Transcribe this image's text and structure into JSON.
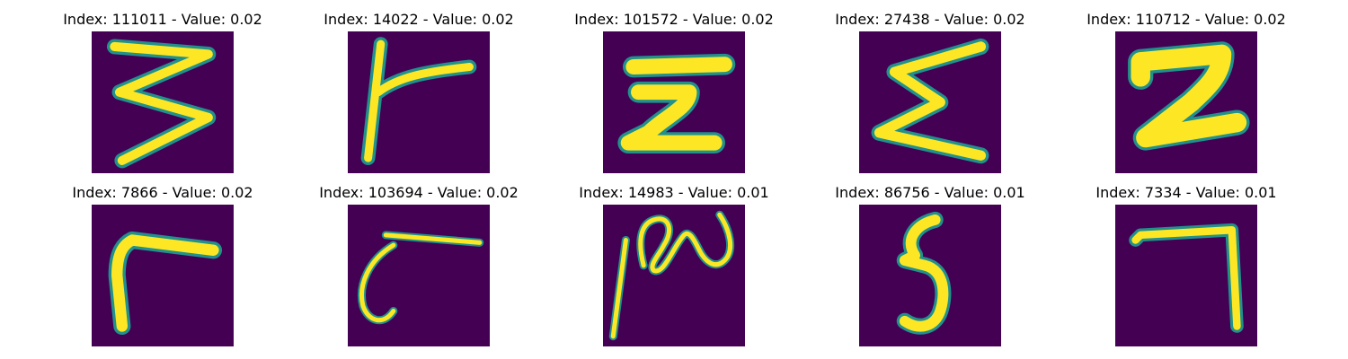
{
  "figure": {
    "background": "#ffffff",
    "colormap": "viridis",
    "stroke_color": "#fde725",
    "edge_color": "#21918c",
    "background_cell_color": "#440154"
  },
  "panels": [
    {
      "title": "Index: 111011 - Value: 0.02",
      "glyph": "handwritten-3"
    },
    {
      "title": "Index: 14022 - Value: 0.02",
      "glyph": "handwritten-rotated-T"
    },
    {
      "title": "Index: 101572 - Value: 0.02",
      "glyph": "handwritten-2"
    },
    {
      "title": "Index: 27438 - Value: 0.02",
      "glyph": "handwritten-sigma"
    },
    {
      "title": "Index: 110712 - Value: 0.02",
      "glyph": "handwritten-2-thick"
    },
    {
      "title": "Index: 7866 - Value: 0.02",
      "glyph": "handwritten-r"
    },
    {
      "title": "Index: 103694 - Value: 0.02",
      "glyph": "handwritten-hook"
    },
    {
      "title": "Index: 14983 - Value: 0.01",
      "glyph": "handwritten-squiggle"
    },
    {
      "title": "Index: 86756 - Value: 0.01",
      "glyph": "handwritten-5"
    },
    {
      "title": "Index: 7334 - Value: 0.01",
      "glyph": "handwritten-7"
    }
  ]
}
